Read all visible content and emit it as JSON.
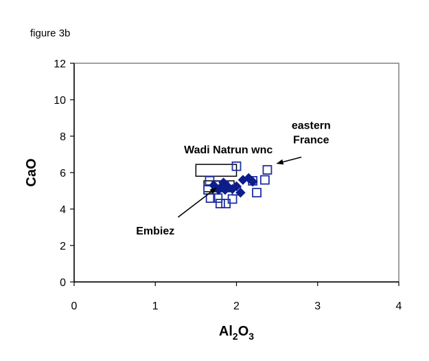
{
  "caption": "figure 3b",
  "chart_data": {
    "type": "scatter",
    "title": "",
    "xlabel": {
      "main": "Al",
      "sub1": "2",
      "mid": "O",
      "sub2": "3"
    },
    "ylabel": "CaO",
    "xlim": [
      0,
      4
    ],
    "ylim": [
      0,
      12
    ],
    "xticks": [
      "0",
      "1",
      "2",
      "3",
      "4"
    ],
    "yticks": [
      "0",
      "2",
      "4",
      "6",
      "8",
      "10",
      "12"
    ],
    "grid": false,
    "legend": "none",
    "colors": {
      "open_squares": "#1f2fa0",
      "diamonds": "#0d1d8a",
      "rectangles": "#000000",
      "axis": "#000000",
      "plot_border": "#808080"
    },
    "series": [
      {
        "marker": "open-square",
        "color": "#1f2fa0",
        "points": [
          [
            1.67,
            5.55
          ],
          [
            1.75,
            5.3
          ],
          [
            1.85,
            5.3
          ],
          [
            2.0,
            6.35
          ],
          [
            2.38,
            6.15
          ],
          [
            2.35,
            5.6
          ],
          [
            2.25,
            4.9
          ],
          [
            2.2,
            5.55
          ],
          [
            2.0,
            5.0
          ],
          [
            1.95,
            4.55
          ],
          [
            1.87,
            4.3
          ],
          [
            1.8,
            4.3
          ],
          [
            1.77,
            4.6
          ],
          [
            1.68,
            4.6
          ],
          [
            1.65,
            5.05
          ]
        ]
      },
      {
        "marker": "filled-diamond",
        "color": "#0d1d8a",
        "points": [
          [
            1.72,
            5.3
          ],
          [
            1.78,
            5.05
          ],
          [
            1.82,
            5.25
          ],
          [
            1.86,
            5.05
          ],
          [
            1.9,
            5.2
          ],
          [
            1.95,
            5.1
          ],
          [
            2.0,
            5.25
          ],
          [
            2.05,
            4.9
          ],
          [
            2.08,
            5.6
          ],
          [
            2.15,
            5.7
          ],
          [
            2.2,
            5.5
          ],
          [
            1.84,
            5.45
          ]
        ]
      }
    ],
    "regions": [
      {
        "x0": 1.5,
        "x1": 2.0,
        "y0": 5.8,
        "y1": 6.45
      },
      {
        "x0": 1.6,
        "x1": 1.97,
        "y0": 4.95,
        "y1": 5.55
      }
    ],
    "annotations": [
      {
        "text": "Wadi Natrun wnc",
        "x": 1.9,
        "y": 7.05
      },
      {
        "text": "eastern",
        "x": 2.92,
        "y": 8.4
      },
      {
        "text": "France",
        "x": 2.92,
        "y": 7.6
      },
      {
        "text": "Embiez",
        "x": 1.0,
        "y": 2.6
      }
    ],
    "arrows": [
      {
        "from": [
          2.8,
          6.85
        ],
        "to": [
          2.5,
          6.5
        ]
      },
      {
        "from": [
          1.28,
          3.55
        ],
        "to": [
          1.75,
          5.15
        ]
      }
    ]
  }
}
